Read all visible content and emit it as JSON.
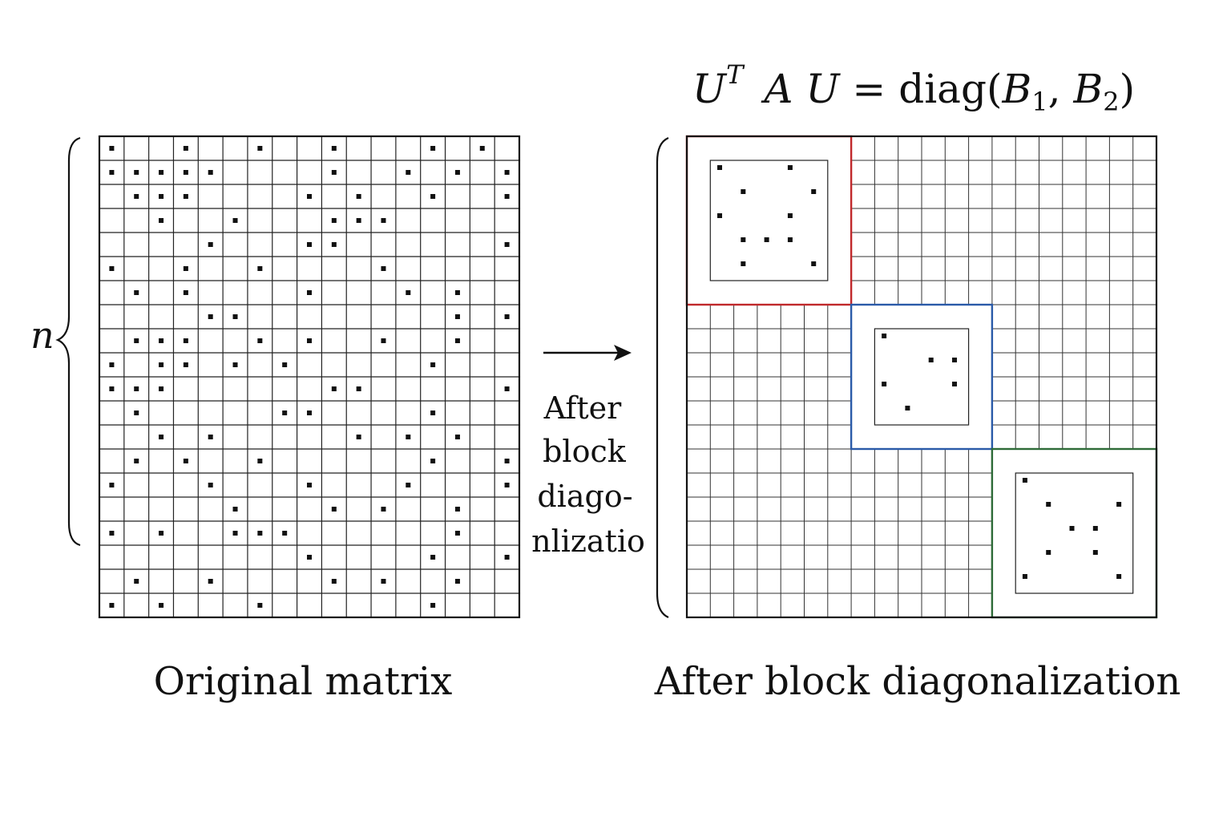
{
  "formula": {
    "U": "U",
    "T": "T",
    "A": "A",
    "U2": "U",
    "equals": "=",
    "diag": "diag",
    "open": "(",
    "B1": "B",
    "sub1": "1",
    "comma": ",",
    "B2": "B",
    "sub2": "2",
    "close": ")"
  },
  "n_label": "n",
  "arrow_label": [
    "After",
    "block",
    "diago-",
    "nlizatio"
  ],
  "captions": {
    "original": "Original matrix",
    "after": "After block diagonalization"
  },
  "original_matrix": {
    "rows": 20,
    "cols": 17,
    "dots": [
      [
        0,
        0
      ],
      [
        0,
        3
      ],
      [
        0,
        6
      ],
      [
        0,
        9
      ],
      [
        0,
        13
      ],
      [
        0,
        15
      ],
      [
        1,
        0
      ],
      [
        1,
        1
      ],
      [
        1,
        2
      ],
      [
        1,
        3
      ],
      [
        1,
        4
      ],
      [
        1,
        9
      ],
      [
        1,
        12
      ],
      [
        1,
        14
      ],
      [
        1,
        16
      ],
      [
        2,
        1
      ],
      [
        2,
        2
      ],
      [
        2,
        3
      ],
      [
        2,
        8
      ],
      [
        2,
        10
      ],
      [
        2,
        13
      ],
      [
        2,
        16
      ],
      [
        3,
        2
      ],
      [
        3,
        5
      ],
      [
        3,
        9
      ],
      [
        3,
        10
      ],
      [
        3,
        11
      ],
      [
        4,
        4
      ],
      [
        4,
        8
      ],
      [
        4,
        9
      ],
      [
        4,
        16
      ],
      [
        5,
        0
      ],
      [
        5,
        3
      ],
      [
        5,
        6
      ],
      [
        5,
        11
      ],
      [
        6,
        1
      ],
      [
        6,
        3
      ],
      [
        6,
        8
      ],
      [
        6,
        12
      ],
      [
        6,
        14
      ],
      [
        7,
        4
      ],
      [
        7,
        5
      ],
      [
        7,
        14
      ],
      [
        7,
        16
      ],
      [
        8,
        1
      ],
      [
        8,
        2
      ],
      [
        8,
        3
      ],
      [
        8,
        6
      ],
      [
        8,
        8
      ],
      [
        8,
        11
      ],
      [
        8,
        14
      ],
      [
        9,
        0
      ],
      [
        9,
        2
      ],
      [
        9,
        3
      ],
      [
        9,
        5
      ],
      [
        9,
        7
      ],
      [
        9,
        13
      ],
      [
        10,
        0
      ],
      [
        10,
        1
      ],
      [
        10,
        2
      ],
      [
        10,
        9
      ],
      [
        10,
        10
      ],
      [
        10,
        16
      ],
      [
        11,
        1
      ],
      [
        11,
        7
      ],
      [
        11,
        8
      ],
      [
        11,
        13
      ],
      [
        12,
        2
      ],
      [
        12,
        4
      ],
      [
        12,
        10
      ],
      [
        12,
        12
      ],
      [
        12,
        14
      ],
      [
        13,
        1
      ],
      [
        13,
        3
      ],
      [
        13,
        6
      ],
      [
        13,
        13
      ],
      [
        13,
        16
      ],
      [
        14,
        0
      ],
      [
        14,
        4
      ],
      [
        14,
        8
      ],
      [
        14,
        12
      ],
      [
        14,
        16
      ],
      [
        15,
        5
      ],
      [
        15,
        9
      ],
      [
        15,
        11
      ],
      [
        15,
        14
      ],
      [
        16,
        0
      ],
      [
        16,
        2
      ],
      [
        16,
        5
      ],
      [
        16,
        6
      ],
      [
        16,
        7
      ],
      [
        16,
        14
      ],
      [
        17,
        8
      ],
      [
        17,
        13
      ],
      [
        17,
        16
      ],
      [
        18,
        1
      ],
      [
        18,
        4
      ],
      [
        18,
        9
      ],
      [
        18,
        11
      ],
      [
        18,
        14
      ],
      [
        19,
        0
      ],
      [
        19,
        2
      ],
      [
        19,
        6
      ],
      [
        19,
        13
      ]
    ]
  },
  "block_matrix": {
    "rows": 20,
    "cols": 20,
    "blocks": [
      {
        "color": "#c0282b",
        "row_start": 0,
        "row_span": 7,
        "col_start": 0,
        "col_span": 7,
        "inner_rows": 5,
        "inner_cols": 5,
        "dots": [
          [
            0,
            0
          ],
          [
            0,
            3
          ],
          [
            1,
            1
          ],
          [
            1,
            4
          ],
          [
            2,
            0
          ],
          [
            2,
            3
          ],
          [
            3,
            1
          ],
          [
            3,
            2
          ],
          [
            3,
            3
          ],
          [
            4,
            1
          ],
          [
            4,
            4
          ]
        ]
      },
      {
        "color": "#2a5aa8",
        "row_start": 7,
        "row_span": 6,
        "col_start": 7,
        "col_span": 6,
        "inner_rows": 4,
        "inner_cols": 4,
        "dots": [
          [
            0,
            0
          ],
          [
            1,
            2
          ],
          [
            1,
            3
          ],
          [
            2,
            0
          ],
          [
            2,
            3
          ],
          [
            3,
            1
          ]
        ]
      },
      {
        "color": "#2e6b38",
        "row_start": 13,
        "row_span": 7,
        "col_start": 13,
        "col_span": 7,
        "inner_rows": 5,
        "inner_cols": 5,
        "dots": [
          [
            0,
            0
          ],
          [
            1,
            1
          ],
          [
            1,
            4
          ],
          [
            2,
            2
          ],
          [
            2,
            3
          ],
          [
            3,
            1
          ],
          [
            3,
            3
          ],
          [
            4,
            0
          ],
          [
            4,
            4
          ]
        ]
      }
    ]
  }
}
